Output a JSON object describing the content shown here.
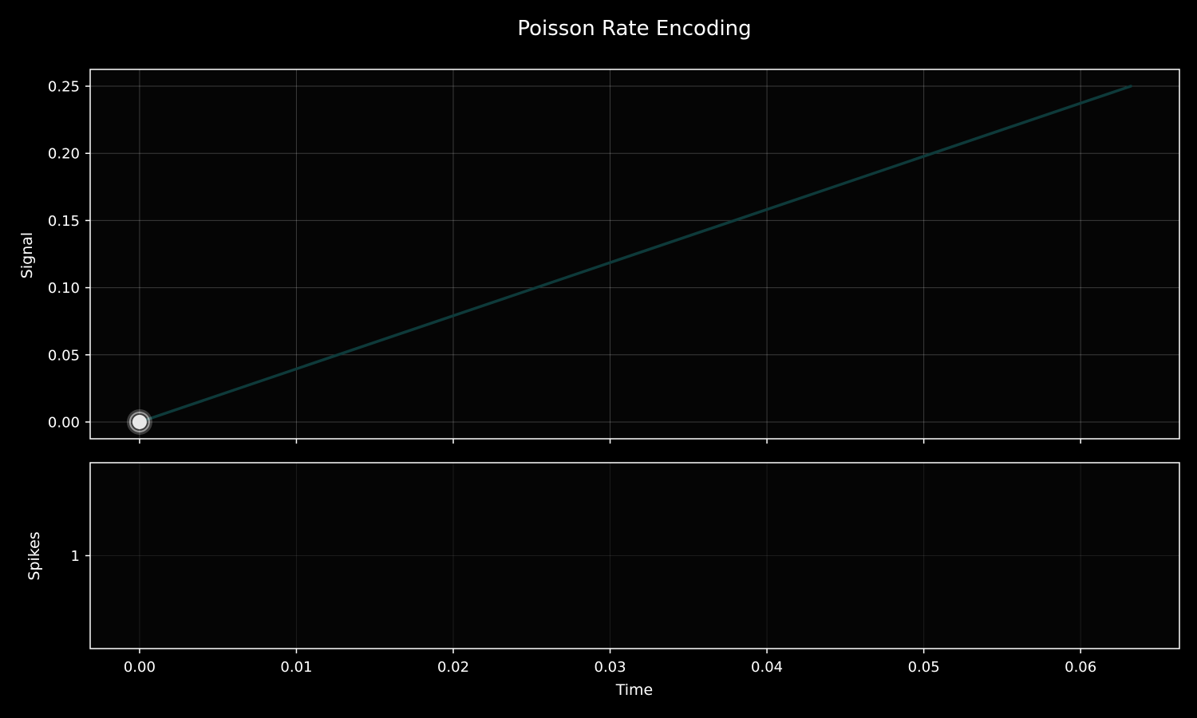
{
  "chart_data": {
    "type": "line",
    "title": "Poisson Rate Encoding",
    "xlabel": "Time",
    "xlim": [
      -0.00315,
      0.0663
    ],
    "x_ticks": [
      0.0,
      0.01,
      0.02,
      0.03,
      0.04,
      0.05,
      0.06
    ],
    "x_tick_labels": [
      "0.00",
      "0.01",
      "0.02",
      "0.03",
      "0.04",
      "0.05",
      "0.06"
    ],
    "grid": true,
    "panels": [
      {
        "id": "signal",
        "ylabel": "Signal",
        "ylim": [
          -0.0125,
          0.2625
        ],
        "y_ticks": [
          0.0,
          0.05,
          0.1,
          0.15,
          0.2,
          0.25
        ],
        "y_tick_labels": [
          "0.00",
          "0.05",
          "0.10",
          "0.15",
          "0.20",
          "0.25"
        ],
        "series": [
          {
            "color": "#0e3a3a",
            "x": [
              0.0,
              0.0632
            ],
            "y": [
              0.0,
              0.25
            ]
          }
        ],
        "marker": {
          "x": 0.0,
          "y": 0.0,
          "color": "#e8e8e8"
        }
      },
      {
        "id": "spikes",
        "ylabel": "Spikes",
        "ylim": [
          0.4,
          1.6
        ],
        "y_ticks": [
          1
        ],
        "y_tick_labels": [
          "1"
        ],
        "series": []
      }
    ]
  }
}
